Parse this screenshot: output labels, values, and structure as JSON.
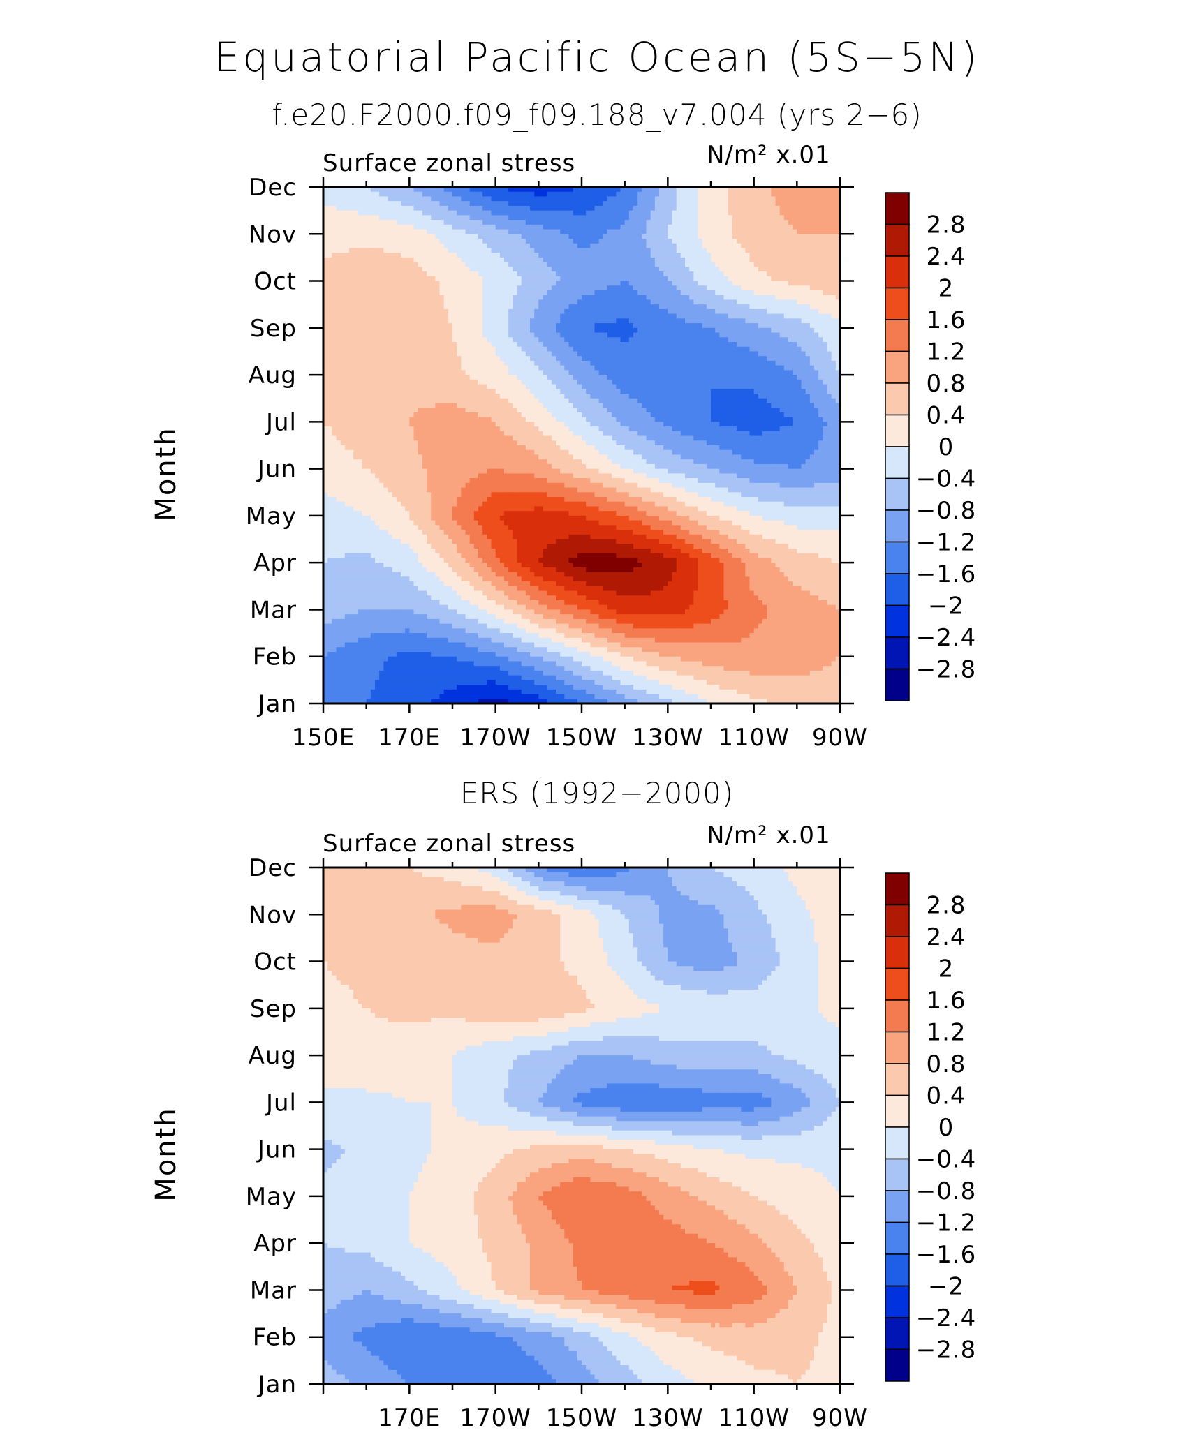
{
  "title": "Equatorial Pacific Ocean (5S−5N)",
  "subtitle": "f.e20.F2000.f09_f09.188_v7.004 (yrs 2−6)",
  "colors": {
    "levels_fill": [
      "#00008b",
      "#0015b4",
      "#0033dd",
      "#1f5fe8",
      "#4a82ee",
      "#7aa2f2",
      "#a8c3f6",
      "#d6e6fb",
      "#fde8dc",
      "#fbc9ae",
      "#f9a47e",
      "#f47b4f",
      "#ee4e1c",
      "#d92f0a",
      "#b01a04",
      "#800000"
    ]
  },
  "chart_data": [
    {
      "type": "heatmap",
      "panel_title": "",
      "left_label": "Surface zonal stress",
      "right_label": "N/m² x.01",
      "ylabel": "Month",
      "x_tick_labels": [
        "150E",
        "170E",
        "170W",
        "150W",
        "130W",
        "110W",
        "90W"
      ],
      "x_range_deg_east": [
        150,
        270
      ],
      "y_tick_labels": [
        "Jan",
        "Feb",
        "Mar",
        "Apr",
        "May",
        "Jun",
        "Jul",
        "Aug",
        "Sep",
        "Oct",
        "Nov",
        "Dec"
      ],
      "colorbar_labels": [
        "2.8",
        "2.4",
        "2",
        "1.6",
        "1.2",
        "0.8",
        "0.4",
        "0",
        "−0.4",
        "−0.8",
        "−1.2",
        "−1.6",
        "−2",
        "−2.4",
        "−2.8"
      ],
      "contour_levels": [
        -2.8,
        -2.4,
        -2,
        -1.6,
        -1.2,
        -0.8,
        -0.4,
        0,
        0.4,
        0.8,
        1.2,
        1.6,
        2,
        2.4,
        2.8
      ],
      "lon": [
        150,
        160,
        170,
        180,
        190,
        200,
        210,
        220,
        230,
        240,
        250,
        260,
        270
      ],
      "grid": [
        [
          -1.3,
          -1.6,
          -1.8,
          -2.2,
          -2.6,
          -2.2,
          -1.6,
          -1.0,
          -0.5,
          0.0,
          0.3,
          0.5,
          0.6
        ],
        [
          -1.2,
          -1.5,
          -1.7,
          -1.6,
          -1.3,
          -0.8,
          -0.2,
          0.4,
          0.8,
          1.0,
          1.1,
          1.0,
          0.8
        ],
        [
          -0.6,
          -0.8,
          -0.8,
          -0.4,
          0.2,
          1.0,
          1.6,
          2.2,
          2.2,
          1.8,
          1.3,
          1.0,
          0.8
        ],
        [
          -0.4,
          -0.5,
          -0.2,
          0.5,
          1.5,
          2.4,
          3.0,
          3.0,
          2.6,
          1.8,
          1.0,
          0.6,
          0.4
        ],
        [
          -0.2,
          0.0,
          0.4,
          1.2,
          2.0,
          2.2,
          2.0,
          1.6,
          1.0,
          0.4,
          0.0,
          -0.2,
          -0.2
        ],
        [
          0.2,
          0.4,
          0.7,
          1.0,
          1.2,
          1.0,
          0.5,
          0.0,
          -0.5,
          -0.8,
          -1.1,
          -1.2,
          -1.0
        ],
        [
          0.4,
          0.6,
          0.8,
          1.0,
          0.8,
          0.3,
          -0.3,
          -0.9,
          -1.3,
          -1.6,
          -1.8,
          -1.6,
          -1.0
        ],
        [
          0.5,
          0.7,
          0.7,
          0.5,
          0.2,
          -0.3,
          -1.0,
          -1.4,
          -1.5,
          -1.6,
          -1.5,
          -1.2,
          -0.4
        ],
        [
          0.6,
          0.7,
          0.6,
          0.4,
          -0.2,
          -1.0,
          -1.6,
          -1.7,
          -1.4,
          -1.2,
          -0.9,
          -0.6,
          -0.1
        ],
        [
          0.6,
          0.7,
          0.6,
          0.3,
          -0.1,
          -0.6,
          -1.0,
          -1.2,
          -0.8,
          -0.2,
          0.3,
          0.5,
          0.7
        ],
        [
          0.2,
          0.3,
          0.2,
          -0.2,
          -0.6,
          -1.0,
          -1.3,
          -1.1,
          -0.4,
          0.2,
          0.6,
          0.8,
          0.8
        ],
        [
          -0.1,
          -0.4,
          -0.8,
          -1.4,
          -2.0,
          -2.2,
          -2.0,
          -1.6,
          -0.6,
          0.2,
          0.7,
          1.0,
          0.8
        ]
      ]
    },
    {
      "type": "heatmap",
      "panel_title": "ERS (1992−2000)",
      "left_label": "Surface zonal stress",
      "right_label": "N/m² x.01",
      "ylabel": "Month",
      "x_tick_labels": [
        "170E",
        "170W",
        "150W",
        "130W",
        "110W",
        "90W"
      ],
      "x_range_deg_east": [
        150,
        270
      ],
      "y_tick_labels": [
        "Jan",
        "Feb",
        "Mar",
        "Apr",
        "May",
        "Jun",
        "Jul",
        "Aug",
        "Sep",
        "Oct",
        "Nov",
        "Dec"
      ],
      "colorbar_labels": [
        "2.8",
        "2.4",
        "2",
        "1.6",
        "1.2",
        "0.8",
        "0.4",
        "0",
        "−0.4",
        "−0.8",
        "−1.2",
        "−1.6",
        "−2",
        "−2.4",
        "−2.8"
      ],
      "contour_levels": [
        -2.8,
        -2.4,
        -2,
        -1.6,
        -1.2,
        -0.8,
        -0.4,
        0,
        0.4,
        0.8,
        1.2,
        1.6,
        2,
        2.4,
        2.8
      ],
      "lon": [
        150,
        160,
        170,
        180,
        190,
        200,
        210,
        220,
        230,
        240,
        250,
        260,
        270
      ],
      "grid": [
        [
          -0.6,
          -0.9,
          -1.2,
          -1.4,
          -1.5,
          -1.4,
          -1.0,
          -0.6,
          -0.2,
          0.1,
          0.3,
          0.4,
          0.3
        ],
        [
          -1.0,
          -1.3,
          -1.6,
          -1.5,
          -1.3,
          -1.0,
          -0.6,
          -0.1,
          0.3,
          0.5,
          0.6,
          0.5,
          0.3
        ],
        [
          -0.6,
          -0.8,
          -0.5,
          -0.1,
          0.4,
          0.9,
          1.2,
          1.4,
          1.6,
          1.7,
          1.4,
          0.8,
          0.3
        ],
        [
          -0.4,
          -0.3,
          0.0,
          0.2,
          0.5,
          0.9,
          1.3,
          1.6,
          1.4,
          1.2,
          0.9,
          0.5,
          0.2
        ],
        [
          -0.3,
          -0.2,
          0.0,
          0.2,
          0.6,
          1.2,
          1.6,
          1.4,
          1.0,
          0.7,
          0.4,
          0.2,
          0.0
        ],
        [
          -0.5,
          -0.3,
          -0.1,
          0.1,
          0.3,
          0.5,
          0.6,
          0.4,
          0.2,
          0.0,
          -0.1,
          -0.1,
          -0.1
        ],
        [
          -0.1,
          -0.1,
          0.0,
          0.0,
          -0.3,
          -0.8,
          -1.3,
          -1.5,
          -1.5,
          -1.4,
          -1.4,
          -1.0,
          -0.4
        ],
        [
          0.2,
          0.3,
          0.2,
          0.0,
          -0.3,
          -0.5,
          -0.8,
          -0.8,
          -0.6,
          -0.5,
          -0.5,
          -0.3,
          -0.1
        ],
        [
          0.3,
          0.4,
          0.5,
          0.5,
          0.7,
          0.7,
          0.5,
          0.2,
          0.0,
          -0.1,
          -0.2,
          -0.1,
          0.1
        ],
        [
          0.4,
          0.5,
          0.5,
          0.6,
          0.7,
          0.5,
          0.3,
          -0.2,
          -0.8,
          -1.0,
          -0.7,
          -0.2,
          0.2
        ],
        [
          0.5,
          0.6,
          0.7,
          0.9,
          1.0,
          0.6,
          0.2,
          -0.4,
          -0.9,
          -0.9,
          -0.5,
          -0.1,
          0.2
        ],
        [
          0.4,
          0.5,
          0.4,
          0.2,
          -0.2,
          -1.2,
          -1.6,
          -1.3,
          -0.8,
          -0.4,
          -0.2,
          0.1,
          0.3
        ]
      ]
    }
  ]
}
